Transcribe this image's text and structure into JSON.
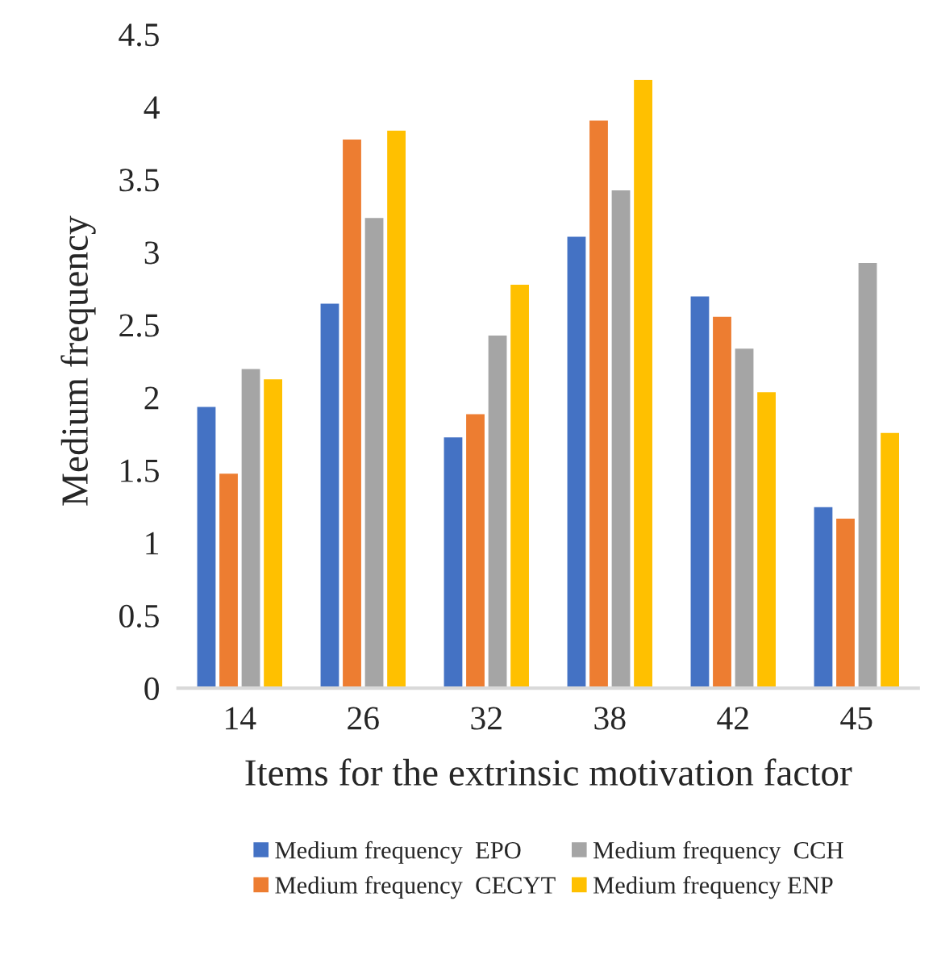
{
  "chart_data": {
    "type": "bar",
    "xlabel": "Items for the extrinsic motivation factor",
    "ylabel": "Medium frequency",
    "categories": [
      "14",
      "26",
      "32",
      "38",
      "42",
      "45"
    ],
    "series": [
      {
        "name": "Medium frequency  EPO",
        "color": "#4472c4",
        "values": [
          1.94,
          2.65,
          1.73,
          3.11,
          2.7,
          1.25
        ]
      },
      {
        "name": "Medium frequency  CECYT",
        "color": "#ed7d31",
        "values": [
          1.48,
          3.78,
          1.89,
          3.91,
          2.56,
          1.17
        ]
      },
      {
        "name": "Medium frequency  CCH",
        "color": "#a5a5a5",
        "values": [
          2.2,
          3.24,
          2.43,
          3.43,
          2.34,
          2.93
        ]
      },
      {
        "name": "Medium frequency ENP",
        "color": "#ffc000",
        "values": [
          2.13,
          3.84,
          2.78,
          4.19,
          2.04,
          1.76
        ]
      }
    ],
    "ylim": [
      0,
      4.5
    ],
    "yticks": [
      0,
      0.5,
      1,
      1.5,
      2,
      2.5,
      3,
      3.5,
      4,
      4.5
    ],
    "grid": false,
    "legend": "bottom"
  }
}
